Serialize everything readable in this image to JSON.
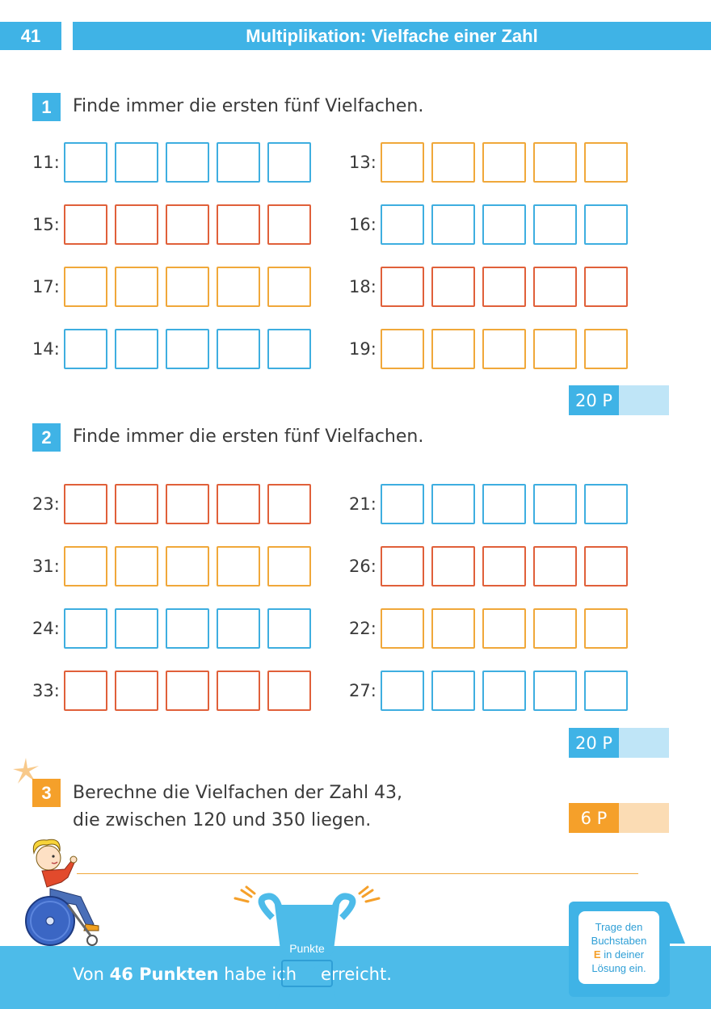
{
  "header": {
    "page_number": "41",
    "title": "Multiplikation: Vielfache einer Zahl"
  },
  "tasks": [
    {
      "number": "1",
      "text": "Finde immer die ersten fünf Vielfachen.",
      "points": "20 P"
    },
    {
      "number": "2",
      "text": "Finde immer die ersten fünf Vielfachen.",
      "points": "20 P"
    },
    {
      "number": "3",
      "text_line1": "Berechne die Vielfachen der Zahl 43,",
      "text_line2": "die zwischen 120 und 350 liegen.",
      "points": "6 P"
    }
  ],
  "task1_rows": {
    "left": [
      {
        "label": "11:",
        "color": "#3eaee0"
      },
      {
        "label": "15:",
        "color": "#e0603a"
      },
      {
        "label": "17:",
        "color": "#f0a83a"
      },
      {
        "label": "14:",
        "color": "#3eaee0"
      }
    ],
    "right": [
      {
        "label": "13:",
        "color": "#f0a83a"
      },
      {
        "label": "16:",
        "color": "#3eaee0"
      },
      {
        "label": "18:",
        "color": "#e0603a"
      },
      {
        "label": "19:",
        "color": "#f0a83a"
      }
    ]
  },
  "task2_rows": {
    "left": [
      {
        "label": "23:",
        "color": "#e0603a"
      },
      {
        "label": "31:",
        "color": "#f0a83a"
      },
      {
        "label": "24:",
        "color": "#3eaee0"
      },
      {
        "label": "33:",
        "color": "#e0603a"
      }
    ],
    "right": [
      {
        "label": "21:",
        "color": "#3eaee0"
      },
      {
        "label": "26:",
        "color": "#e0603a"
      },
      {
        "label": "22:",
        "color": "#f0a83a"
      },
      {
        "label": "27:",
        "color": "#3eaee0"
      }
    ]
  },
  "footer": {
    "prefix": "Von ",
    "bold": "46 Punkten",
    "middle": " habe ich",
    "suffix": "erreicht.",
    "trophy_label": "Punkte"
  },
  "note": {
    "line1": "Trage den",
    "line2": "Buchstaben",
    "letter": "E",
    "line3": " in deiner",
    "line4": "Lösung ein."
  },
  "colors": {
    "accent_blue": "#3fb3e6",
    "accent_orange": "#f5a02a",
    "box_red": "#e0603a"
  }
}
